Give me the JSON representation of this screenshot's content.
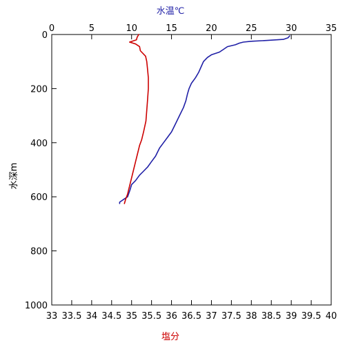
{
  "chart_data": {
    "type": "line",
    "axes": {
      "depth": {
        "label": "水深m",
        "range": [
          0,
          1000
        ],
        "ticks": [
          0,
          200,
          400,
          600,
          800,
          1000
        ],
        "tick_labels": [
          "0",
          "200",
          "400",
          "600",
          "800",
          "1000"
        ],
        "inverted": true
      },
      "temperature": {
        "label": "水温℃",
        "position": "top",
        "range": [
          0,
          35
        ],
        "ticks": [
          0,
          5,
          10,
          15,
          20,
          25,
          30,
          35
        ],
        "tick_labels": [
          "0",
          "5",
          "10",
          "15",
          "20",
          "25",
          "30",
          "35"
        ],
        "color": "#1f1fa6"
      },
      "salinity": {
        "label": "塩分",
        "position": "bottom",
        "range": [
          33,
          40
        ],
        "ticks": [
          33,
          33.5,
          34,
          34.5,
          35,
          35.5,
          36,
          36.5,
          37,
          37.5,
          38,
          38.5,
          39,
          39.5,
          40
        ],
        "tick_labels": [
          "33",
          "33.5",
          "34",
          "34.5",
          "35",
          "35.5",
          "36",
          "36.5",
          "37",
          "37.5",
          "38",
          "38.5",
          "39",
          "39.5",
          "40"
        ],
        "color": "#cc0000"
      }
    },
    "grid": false,
    "series": [
      {
        "axis": "temperature",
        "color": "#1f1fa6",
        "points": [
          [
            29.8,
            5
          ],
          [
            29.6,
            12
          ],
          [
            29.0,
            18
          ],
          [
            27.0,
            22
          ],
          [
            25.0,
            25
          ],
          [
            24.0,
            28
          ],
          [
            23.5,
            32
          ],
          [
            23.0,
            38
          ],
          [
            22.0,
            45
          ],
          [
            21.5,
            55
          ],
          [
            21.0,
            65
          ],
          [
            20.0,
            75
          ],
          [
            19.5,
            85
          ],
          [
            19.0,
            100
          ],
          [
            18.7,
            120
          ],
          [
            18.4,
            140
          ],
          [
            18.0,
            160
          ],
          [
            17.5,
            180
          ],
          [
            17.2,
            200
          ],
          [
            17.0,
            220
          ],
          [
            16.8,
            245
          ],
          [
            16.5,
            270
          ],
          [
            16.0,
            300
          ],
          [
            15.5,
            330
          ],
          [
            15.0,
            360
          ],
          [
            14.5,
            380
          ],
          [
            14.0,
            400
          ],
          [
            13.5,
            420
          ],
          [
            13.0,
            450
          ],
          [
            12.5,
            470
          ],
          [
            12.0,
            490
          ],
          [
            11.5,
            505
          ],
          [
            11.0,
            520
          ],
          [
            10.5,
            540
          ],
          [
            10.0,
            555
          ],
          [
            9.8,
            575
          ],
          [
            9.5,
            600
          ],
          [
            9.0,
            610
          ],
          [
            8.5,
            620
          ],
          [
            8.5,
            625
          ]
        ]
      },
      {
        "axis": "salinity",
        "color": "#cc0000",
        "points": [
          [
            35.18,
            0
          ],
          [
            35.14,
            10
          ],
          [
            35.12,
            20
          ],
          [
            34.95,
            28
          ],
          [
            35.1,
            35
          ],
          [
            35.2,
            45
          ],
          [
            35.22,
            60
          ],
          [
            35.35,
            80
          ],
          [
            35.38,
            100
          ],
          [
            35.4,
            130
          ],
          [
            35.42,
            160
          ],
          [
            35.42,
            200
          ],
          [
            35.4,
            240
          ],
          [
            35.38,
            280
          ],
          [
            35.36,
            320
          ],
          [
            35.3,
            360
          ],
          [
            35.25,
            390
          ],
          [
            35.2,
            410
          ],
          [
            35.15,
            440
          ],
          [
            35.1,
            470
          ],
          [
            35.05,
            500
          ],
          [
            35.0,
            530
          ],
          [
            34.95,
            560
          ],
          [
            34.9,
            590
          ],
          [
            34.85,
            610
          ],
          [
            34.82,
            625
          ]
        ]
      }
    ]
  }
}
